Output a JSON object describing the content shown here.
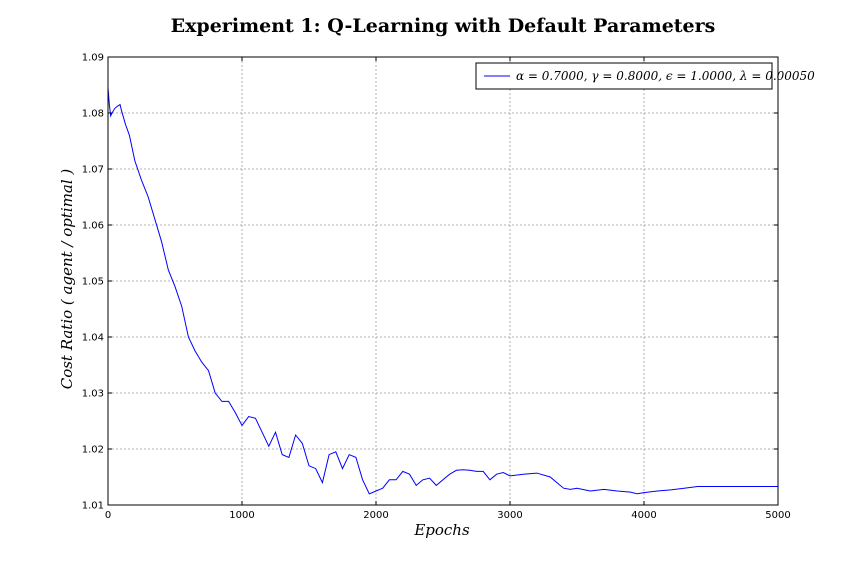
{
  "chart_data": {
    "type": "line",
    "title": "Experiment 1: Q-Learning with Default Parameters",
    "xlabel": "Epochs",
    "ylabel": "Cost Ratio ( agent / optimal )",
    "xlim": [
      0,
      5000
    ],
    "ylim": [
      1.01,
      1.09
    ],
    "xticks": [
      "0",
      "1000",
      "2000",
      "3000",
      "4000",
      "5000"
    ],
    "yticks": [
      "1.01",
      "1.02",
      "1.03",
      "1.04",
      "1.05",
      "1.06",
      "1.07",
      "1.08",
      "1.09"
    ],
    "grid": true,
    "legend_position": "top-right",
    "line_color": "#0000ff",
    "series": [
      {
        "name": "α = 0.7000, γ = 0.8000, ϵ = 1.0000, λ = 0.00050",
        "x": [
          0,
          10,
          20,
          30,
          50,
          70,
          90,
          100,
          130,
          160,
          200,
          250,
          300,
          350,
          400,
          450,
          500,
          550,
          600,
          650,
          700,
          750,
          800,
          850,
          900,
          950,
          1000,
          1050,
          1100,
          1150,
          1200,
          1250,
          1300,
          1350,
          1400,
          1450,
          1500,
          1550,
          1600,
          1650,
          1700,
          1750,
          1800,
          1850,
          1900,
          1950,
          2000,
          2050,
          2100,
          2150,
          2200,
          2250,
          2300,
          2350,
          2400,
          2450,
          2500,
          2550,
          2600,
          2650,
          2700,
          2750,
          2800,
          2850,
          2900,
          2950,
          3000,
          3100,
          3200,
          3300,
          3350,
          3400,
          3450,
          3500,
          3600,
          3700,
          3800,
          3900,
          3950,
          4000,
          4100,
          4200,
          4300,
          4400,
          4500,
          4600,
          4800,
          5000
        ],
        "y": [
          1.0845,
          1.0815,
          1.0795,
          1.08,
          1.0808,
          1.0812,
          1.0815,
          1.0805,
          1.078,
          1.076,
          1.0715,
          1.068,
          1.065,
          1.061,
          1.057,
          1.052,
          1.049,
          1.0455,
          1.04,
          1.0375,
          1.0355,
          1.034,
          1.03,
          1.0285,
          1.0285,
          1.0265,
          1.0242,
          1.0258,
          1.0255,
          1.023,
          1.0205,
          1.023,
          1.019,
          1.0185,
          1.0225,
          1.021,
          1.017,
          1.0165,
          1.014,
          1.019,
          1.0195,
          1.0165,
          1.019,
          1.0185,
          1.0145,
          1.012,
          1.0125,
          1.013,
          1.0145,
          1.0145,
          1.016,
          1.0155,
          1.0135,
          1.0145,
          1.0148,
          1.0135,
          1.0145,
          1.0155,
          1.0162,
          1.0163,
          1.0162,
          1.016,
          1.016,
          1.0145,
          1.0155,
          1.0158,
          1.0152,
          1.0155,
          1.0157,
          1.015,
          1.014,
          1.013,
          1.0128,
          1.013,
          1.0125,
          1.0128,
          1.0125,
          1.0123,
          1.012,
          1.0122,
          1.0125,
          1.0127,
          1.013,
          1.0133,
          1.0133,
          1.0133,
          1.0133,
          1.0133
        ]
      }
    ]
  }
}
